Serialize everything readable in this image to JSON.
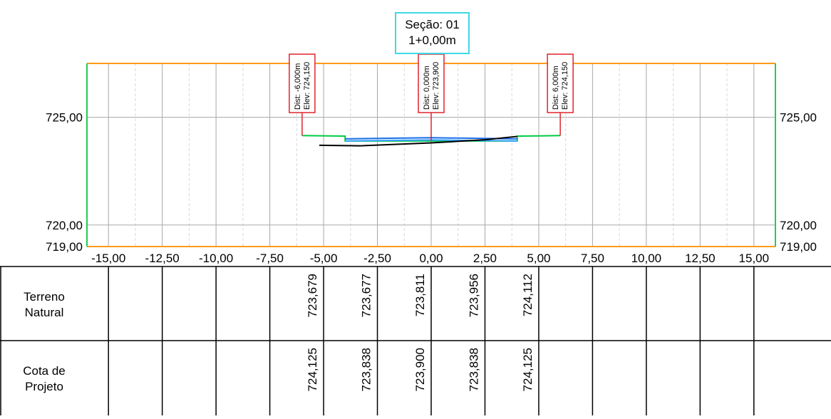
{
  "section": {
    "label": "Seção: 01",
    "station": "1+0,00m"
  },
  "chart_data": {
    "type": "line",
    "xlim": [
      -16,
      16
    ],
    "ylim": [
      719,
      727.5
    ],
    "x_ticks": [
      -15,
      -12.5,
      -10,
      -7.5,
      -5,
      -2.5,
      0,
      2.5,
      5,
      7.5,
      10,
      12.5,
      15
    ],
    "x_tick_labels": [
      "-15,00",
      "-12,50",
      "-10,00",
      "-7,50",
      "-5,00",
      "-2,50",
      "0,00",
      "2,50",
      "5,00",
      "7,50",
      "10,00",
      "12,50",
      "15,00"
    ],
    "y_ticks": [
      725,
      720,
      719
    ],
    "y_tick_labels": [
      "725,00",
      "720,00",
      "719,00"
    ],
    "series": [
      {
        "color": "#00cc44",
        "x": [
          -6,
          -4.0,
          -4.0,
          4.0,
          4.0,
          6
        ],
        "y": [
          724.15,
          724.125,
          723.9,
          723.9,
          724.125,
          724.15
        ]
      },
      {
        "color": "#1a6ee8",
        "x": [
          -4.0,
          0,
          4.0
        ],
        "y": [
          724.0,
          724.05,
          724.0
        ]
      },
      {
        "color": "#3aa0ff",
        "x": [
          -4.0,
          0,
          4.0
        ],
        "y": [
          723.9,
          723.95,
          723.9
        ]
      },
      {
        "color": "#000000",
        "x": [
          -5.2,
          -3.3,
          0,
          2.5,
          4.0
        ],
        "y": [
          723.7,
          723.677,
          723.811,
          723.956,
          724.112
        ]
      }
    ],
    "markers": [
      {
        "x": -6,
        "y": 724.15,
        "dist": "Dist: -6,000m",
        "elev": "Elev: 724,150"
      },
      {
        "x": 0,
        "y": 723.9,
        "dist": "Dist: 0,000m",
        "elev": "Elev: 723,900"
      },
      {
        "x": 6,
        "y": 724.15,
        "dist": "Dist: 6,000m",
        "elev": "Elev: 724,150"
      }
    ]
  },
  "table": {
    "rows": [
      {
        "label_line1": "Terreno",
        "label_line2": "Natural",
        "values": [
          {
            "x": -5.0,
            "text": "723,679"
          },
          {
            "x": -2.5,
            "text": "723,677"
          },
          {
            "x": 0.0,
            "text": "723,811"
          },
          {
            "x": 2.5,
            "text": "723,956"
          },
          {
            "x": 5.0,
            "text": "724,112"
          }
        ]
      },
      {
        "label_line1": "Cota de",
        "label_line2": "Projeto",
        "values": [
          {
            "x": -5.0,
            "text": "724,125"
          },
          {
            "x": -2.5,
            "text": "723,838"
          },
          {
            "x": 0.0,
            "text": "723,900"
          },
          {
            "x": 2.5,
            "text": "723,838"
          },
          {
            "x": 5.0,
            "text": "724,125"
          }
        ]
      }
    ]
  }
}
